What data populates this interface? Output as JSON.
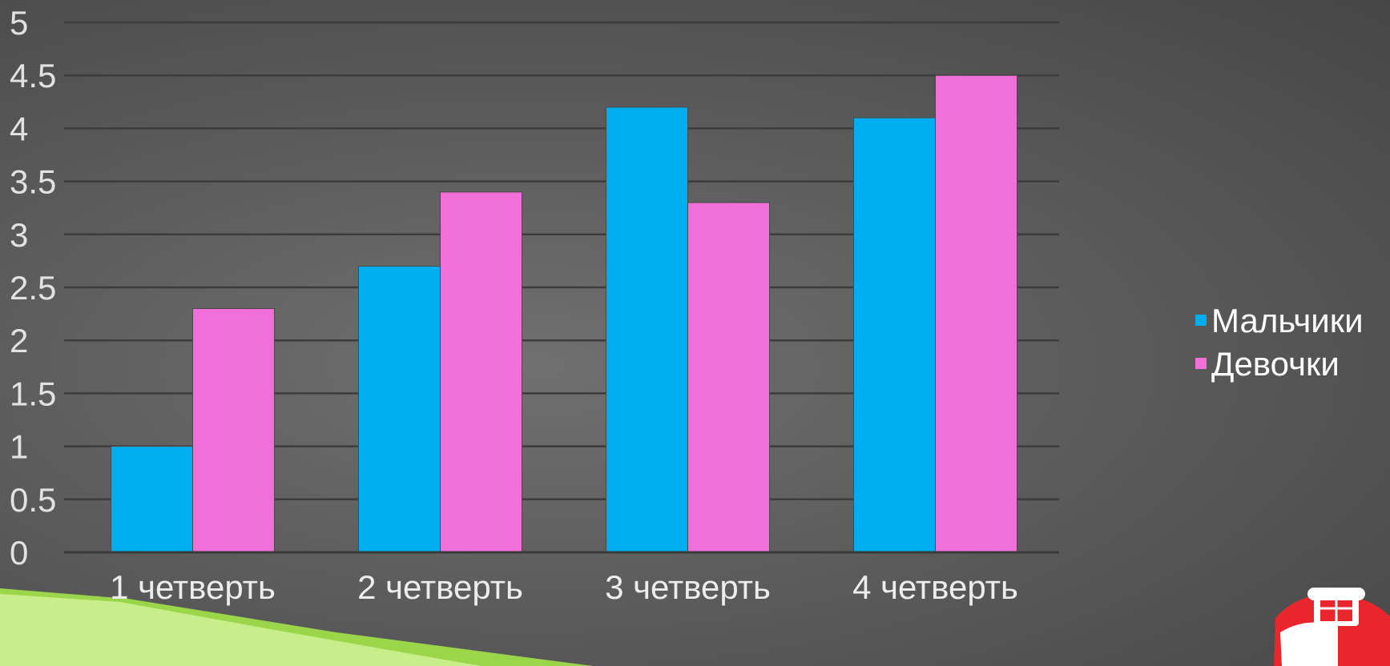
{
  "chart_data": {
    "type": "bar",
    "categories": [
      "1 четверть",
      "2 четверть",
      "3 четверть",
      "4 четверть"
    ],
    "series": [
      {
        "name": "Мальчики",
        "values": [
          1.0,
          2.7,
          4.2,
          4.1
        ],
        "color": "#00aeef"
      },
      {
        "name": "Девочки",
        "values": [
          2.3,
          3.4,
          3.3,
          4.5
        ],
        "color": "#f06fd8"
      }
    ],
    "ylim": [
      0,
      5
    ],
    "yticks": [
      "0",
      "0.5",
      "1",
      "1.5",
      "2",
      "2.5",
      "3",
      "3.5",
      "4",
      "4.5",
      "5"
    ],
    "grid": true,
    "legend_position": "right"
  }
}
